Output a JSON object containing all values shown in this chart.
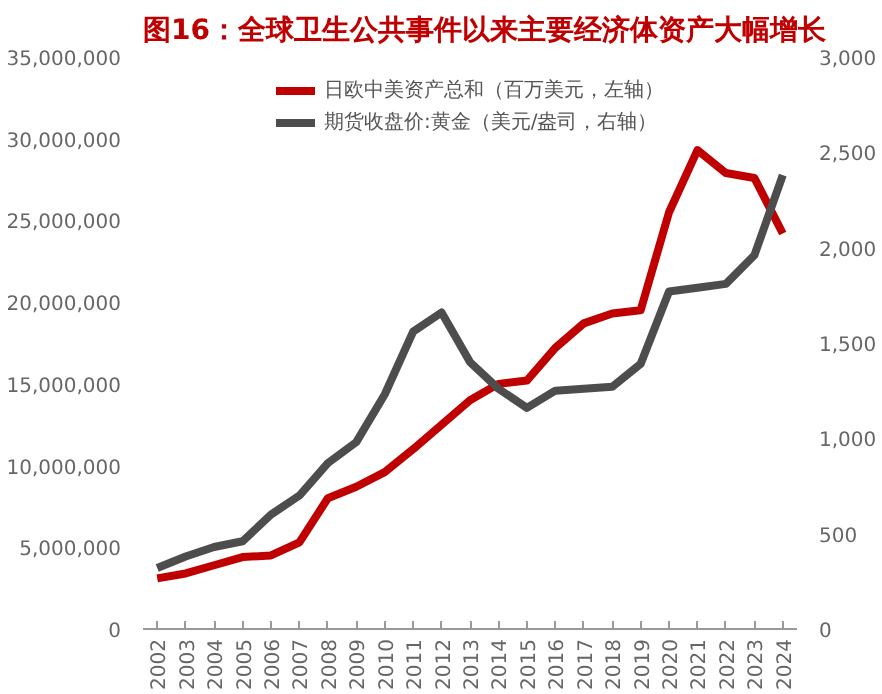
{
  "chart_data": {
    "type": "line",
    "title": "图16：全球卫生公共事件以来主要经济体资产大幅增长",
    "categories": [
      "2002",
      "2003",
      "2004",
      "2005",
      "2006",
      "2007",
      "2008",
      "2009",
      "2010",
      "2011",
      "2012",
      "2013",
      "2014",
      "2015",
      "2016",
      "2017",
      "2018",
      "2019",
      "2020",
      "2021",
      "2022",
      "2023",
      "2024"
    ],
    "series": [
      {
        "name": "日欧中美资产总和（百万美元，左轴）",
        "color": "#c00000",
        "values": [
          3100000,
          3400000,
          3900000,
          4400000,
          4500000,
          5300000,
          8000000,
          8700000,
          9600000,
          11000000,
          12500000,
          14000000,
          15000000,
          15200000,
          17200000,
          18700000,
          19300000,
          19500000,
          25500000,
          29300000,
          27900000,
          27600000,
          24200000
        ]
      },
      {
        "name": "期货收盘价:黄金（美元/盎司，右轴）",
        "color": "#4d4d4d",
        "axis": "y2",
        "values": [
          320,
          380,
          430,
          460,
          600,
          700,
          870,
          980,
          1230,
          1560,
          1660,
          1400,
          1260,
          1160,
          1250,
          1260,
          1270,
          1390,
          1770,
          1790,
          1810,
          1960,
          2380
        ]
      }
    ],
    "ylim": [
      0,
      35000000
    ],
    "yticks": [
      {
        "value": 0,
        "label": "0"
      },
      {
        "value": 5000000,
        "label": "5,000,000"
      },
      {
        "value": 10000000,
        "label": "10,000,000"
      },
      {
        "value": 15000000,
        "label": "15,000,000"
      },
      {
        "value": 20000000,
        "label": "20,000,000"
      },
      {
        "value": 25000000,
        "label": "25,000,000"
      },
      {
        "value": 30000000,
        "label": "30,000,000"
      },
      {
        "value": 35000000,
        "label": "35,000,000"
      }
    ],
    "y2lim": [
      0,
      3000
    ],
    "y2ticks": [
      {
        "value": 0,
        "label": "0"
      },
      {
        "value": 500,
        "label": "500"
      },
      {
        "value": 1000,
        "label": "1,000"
      },
      {
        "value": 1500,
        "label": "1,500"
      },
      {
        "value": 2000,
        "label": "2,000"
      },
      {
        "value": 2500,
        "label": "2,500"
      },
      {
        "value": 3000,
        "label": "3,000"
      }
    ],
    "legend": "top",
    "grid": false
  }
}
